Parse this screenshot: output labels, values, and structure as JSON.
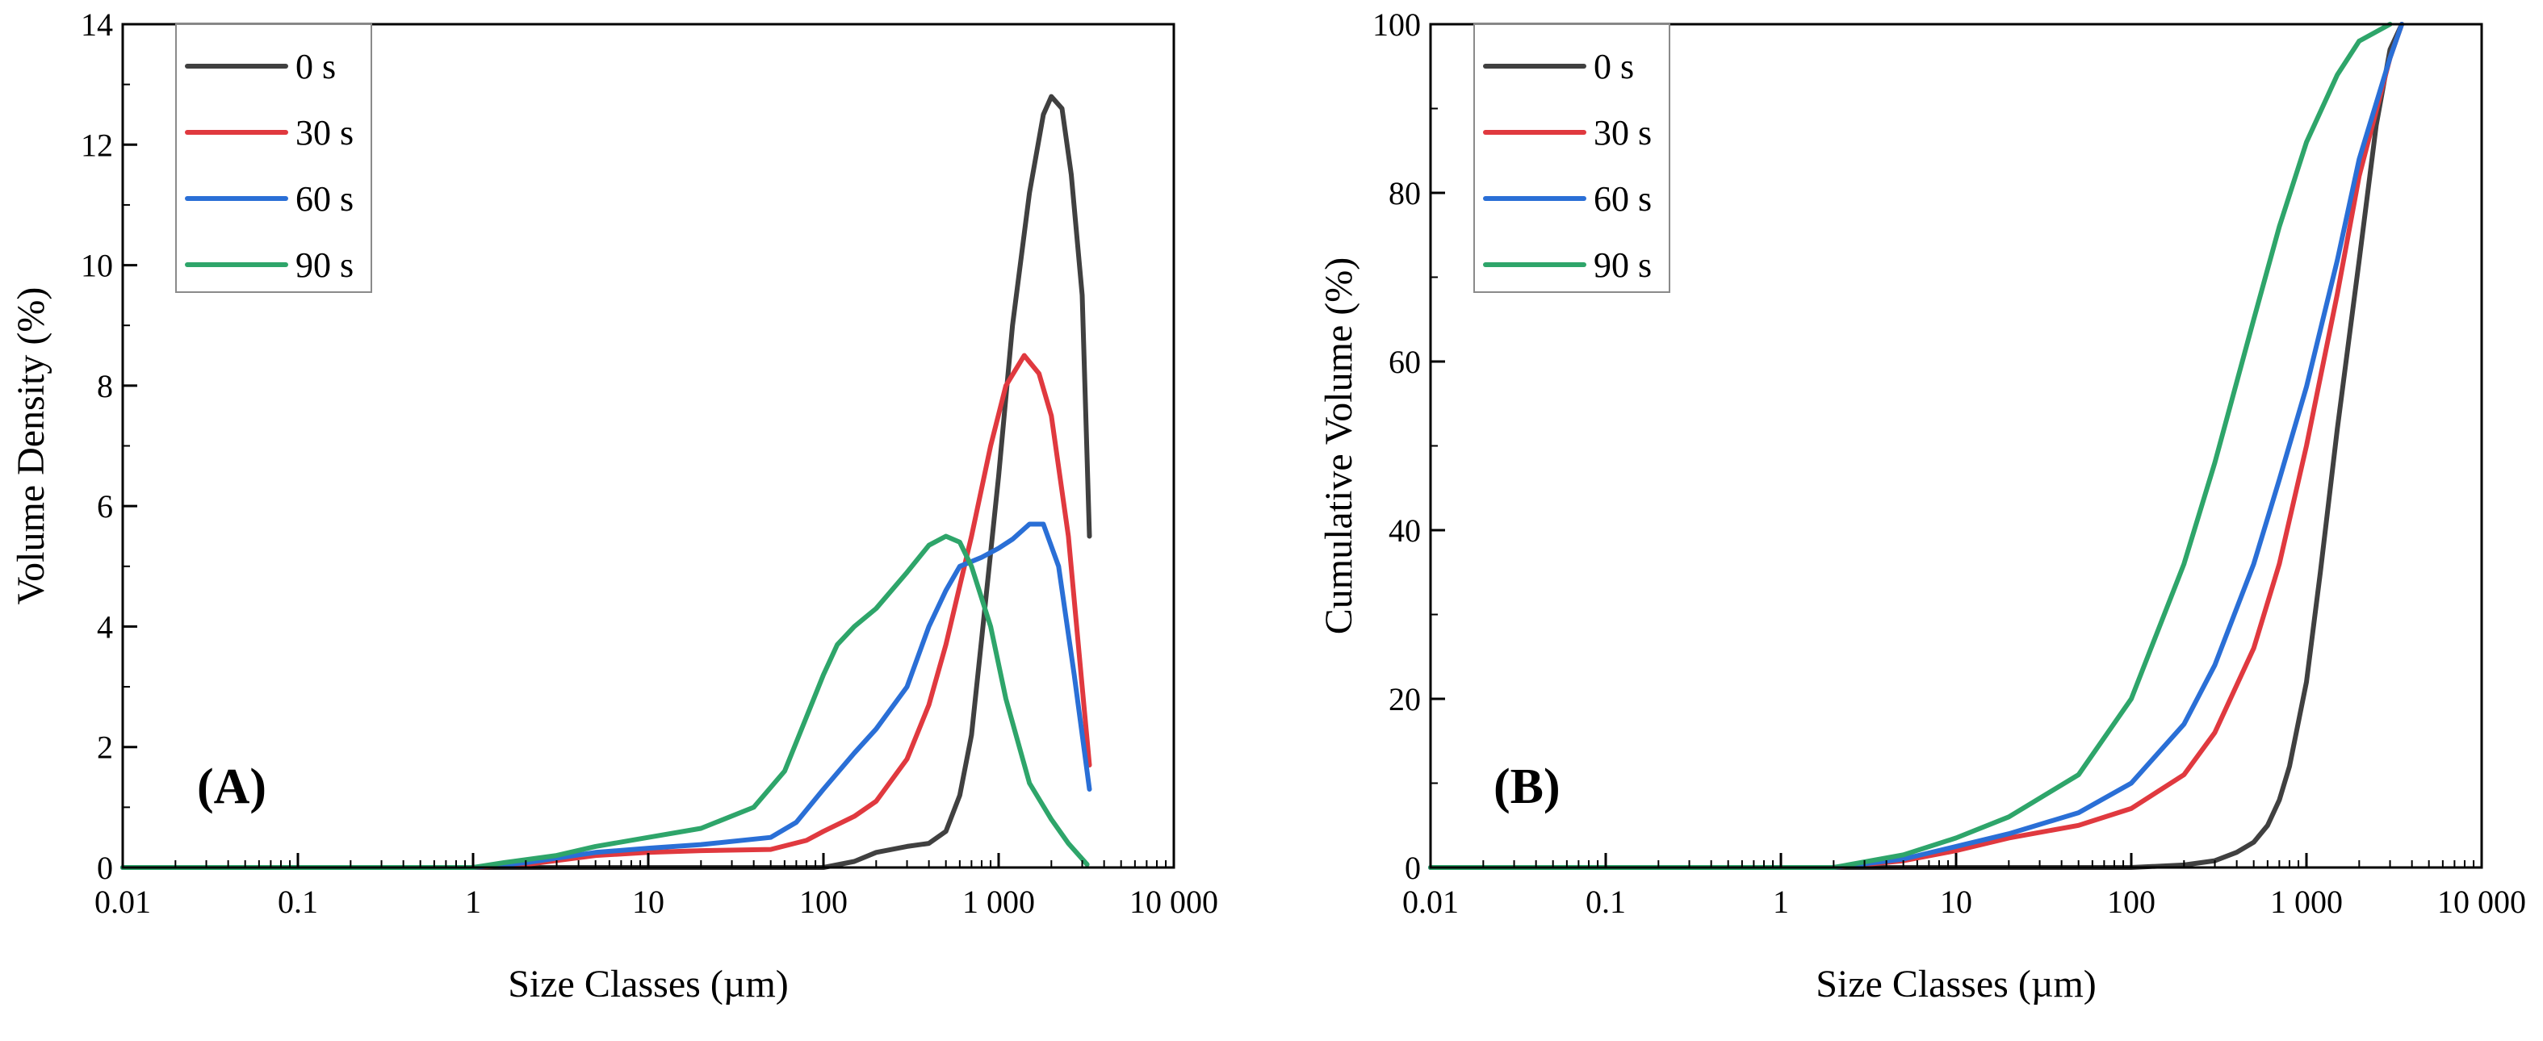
{
  "chart_data": [
    {
      "type": "line",
      "panel_label": "(A)",
      "xlabel": "Size Classes (µm)",
      "ylabel": "Volume Density (%)",
      "x_scale": "log",
      "xlim": [
        0.01,
        10000
      ],
      "ylim": [
        0,
        14
      ],
      "x_ticks": [
        0.01,
        0.1,
        1,
        10,
        100,
        1000,
        10000
      ],
      "x_tick_labels": [
        "0.01",
        "0.1",
        "1",
        "10",
        "100",
        "1 000",
        "10 000"
      ],
      "y_ticks": [
        0,
        2,
        4,
        6,
        8,
        10,
        12,
        14
      ],
      "y_tick_labels": [
        "0",
        "2",
        "4",
        "6",
        "8",
        "10",
        "12",
        "14"
      ],
      "grid": false,
      "legend_position": "top-left",
      "series": [
        {
          "name": "0 s",
          "color": "#404040",
          "points": [
            [
              0.01,
              0
            ],
            [
              10,
              0
            ],
            [
              100,
              0
            ],
            [
              150,
              0.1
            ],
            [
              200,
              0.25
            ],
            [
              300,
              0.35
            ],
            [
              400,
              0.4
            ],
            [
              500,
              0.6
            ],
            [
              600,
              1.2
            ],
            [
              700,
              2.2
            ],
            [
              800,
              3.8
            ],
            [
              1000,
              6.5
            ],
            [
              1200,
              9.0
            ],
            [
              1500,
              11.2
            ],
            [
              1800,
              12.5
            ],
            [
              2000,
              12.8
            ],
            [
              2300,
              12.6
            ],
            [
              2600,
              11.5
            ],
            [
              3000,
              9.5
            ],
            [
              3300,
              5.5
            ]
          ]
        },
        {
          "name": "30 s",
          "color": "#e0393f",
          "points": [
            [
              0.01,
              0
            ],
            [
              1,
              0
            ],
            [
              2,
              0.05
            ],
            [
              5,
              0.2
            ],
            [
              10,
              0.25
            ],
            [
              20,
              0.28
            ],
            [
              50,
              0.3
            ],
            [
              80,
              0.45
            ],
            [
              100,
              0.6
            ],
            [
              150,
              0.85
            ],
            [
              200,
              1.1
            ],
            [
              300,
              1.8
            ],
            [
              400,
              2.7
            ],
            [
              500,
              3.7
            ],
            [
              700,
              5.5
            ],
            [
              900,
              7.0
            ],
            [
              1100,
              8.0
            ],
            [
              1400,
              8.5
            ],
            [
              1700,
              8.2
            ],
            [
              2000,
              7.5
            ],
            [
              2500,
              5.5
            ],
            [
              3000,
              3.0
            ],
            [
              3300,
              1.7
            ]
          ]
        },
        {
          "name": "60 s",
          "color": "#2a6fd6",
          "points": [
            [
              0.01,
              0
            ],
            [
              1,
              0
            ],
            [
              2,
              0.08
            ],
            [
              5,
              0.25
            ],
            [
              10,
              0.32
            ],
            [
              20,
              0.38
            ],
            [
              50,
              0.5
            ],
            [
              70,
              0.75
            ],
            [
              100,
              1.3
            ],
            [
              150,
              1.9
            ],
            [
              200,
              2.3
            ],
            [
              300,
              3.0
            ],
            [
              400,
              4.0
            ],
            [
              500,
              4.6
            ],
            [
              600,
              5.0
            ],
            [
              800,
              5.15
            ],
            [
              1000,
              5.3
            ],
            [
              1200,
              5.45
            ],
            [
              1500,
              5.7
            ],
            [
              1800,
              5.7
            ],
            [
              2200,
              5.0
            ],
            [
              2700,
              3.2
            ],
            [
              3300,
              1.3
            ]
          ]
        },
        {
          "name": "90 s",
          "color": "#2ea56a",
          "points": [
            [
              0.01,
              0
            ],
            [
              1,
              0
            ],
            [
              1.5,
              0.08
            ],
            [
              3,
              0.2
            ],
            [
              5,
              0.35
            ],
            [
              10,
              0.5
            ],
            [
              20,
              0.65
            ],
            [
              40,
              1.0
            ],
            [
              60,
              1.6
            ],
            [
              80,
              2.5
            ],
            [
              100,
              3.2
            ],
            [
              120,
              3.7
            ],
            [
              150,
              4.0
            ],
            [
              200,
              4.3
            ],
            [
              300,
              4.9
            ],
            [
              400,
              5.35
            ],
            [
              500,
              5.5
            ],
            [
              600,
              5.4
            ],
            [
              700,
              5.0
            ],
            [
              900,
              4.0
            ],
            [
              1100,
              2.8
            ],
            [
              1500,
              1.4
            ],
            [
              2000,
              0.8
            ],
            [
              2500,
              0.4
            ],
            [
              3200,
              0.05
            ]
          ]
        }
      ]
    },
    {
      "type": "line",
      "panel_label": "(B)",
      "xlabel": "Size Classes (µm)",
      "ylabel": "Cumulative Volume (%)",
      "x_scale": "log",
      "xlim": [
        0.01,
        10000
      ],
      "ylim": [
        0,
        100
      ],
      "x_ticks": [
        0.01,
        0.1,
        1,
        10,
        100,
        1000,
        10000
      ],
      "x_tick_labels": [
        "0.01",
        "0.1",
        "1",
        "10",
        "100",
        "1 000",
        "10 000"
      ],
      "y_ticks": [
        0,
        20,
        40,
        60,
        80,
        100
      ],
      "y_tick_labels": [
        "0",
        "20",
        "40",
        "60",
        "80",
        "100"
      ],
      "grid": false,
      "legend_position": "top-left",
      "series": [
        {
          "name": "0 s",
          "color": "#404040",
          "points": [
            [
              0.01,
              0
            ],
            [
              100,
              0
            ],
            [
              200,
              0.3
            ],
            [
              300,
              0.8
            ],
            [
              400,
              1.8
            ],
            [
              500,
              3
            ],
            [
              600,
              5
            ],
            [
              700,
              8
            ],
            [
              800,
              12
            ],
            [
              1000,
              22
            ],
            [
              1200,
              35
            ],
            [
              1500,
              52
            ],
            [
              2000,
              72
            ],
            [
              2500,
              88
            ],
            [
              3000,
              97
            ],
            [
              3500,
              100
            ]
          ]
        },
        {
          "name": "30 s",
          "color": "#e0393f",
          "points": [
            [
              0.01,
              0
            ],
            [
              2,
              0
            ],
            [
              5,
              0.8
            ],
            [
              10,
              2
            ],
            [
              20,
              3.5
            ],
            [
              50,
              5
            ],
            [
              100,
              7
            ],
            [
              200,
              11
            ],
            [
              300,
              16
            ],
            [
              500,
              26
            ],
            [
              700,
              36
            ],
            [
              1000,
              50
            ],
            [
              1500,
              68
            ],
            [
              2000,
              82
            ],
            [
              3000,
              96
            ],
            [
              3500,
              100
            ]
          ]
        },
        {
          "name": "60 s",
          "color": "#2a6fd6",
          "points": [
            [
              0.01,
              0
            ],
            [
              2,
              0
            ],
            [
              5,
              1
            ],
            [
              10,
              2.5
            ],
            [
              20,
              4
            ],
            [
              50,
              6.5
            ],
            [
              100,
              10
            ],
            [
              200,
              17
            ],
            [
              300,
              24
            ],
            [
              500,
              36
            ],
            [
              700,
              46
            ],
            [
              1000,
              57
            ],
            [
              1500,
              72
            ],
            [
              2000,
              84
            ],
            [
              3000,
              96
            ],
            [
              3500,
              100
            ]
          ]
        },
        {
          "name": "90 s",
          "color": "#2ea56a",
          "points": [
            [
              0.01,
              0
            ],
            [
              2,
              0
            ],
            [
              5,
              1.5
            ],
            [
              10,
              3.5
            ],
            [
              20,
              6
            ],
            [
              50,
              11
            ],
            [
              100,
              20
            ],
            [
              200,
              36
            ],
            [
              300,
              48
            ],
            [
              500,
              65
            ],
            [
              700,
              76
            ],
            [
              1000,
              86
            ],
            [
              1500,
              94
            ],
            [
              2000,
              98
            ],
            [
              3000,
              100
            ]
          ]
        }
      ]
    }
  ]
}
